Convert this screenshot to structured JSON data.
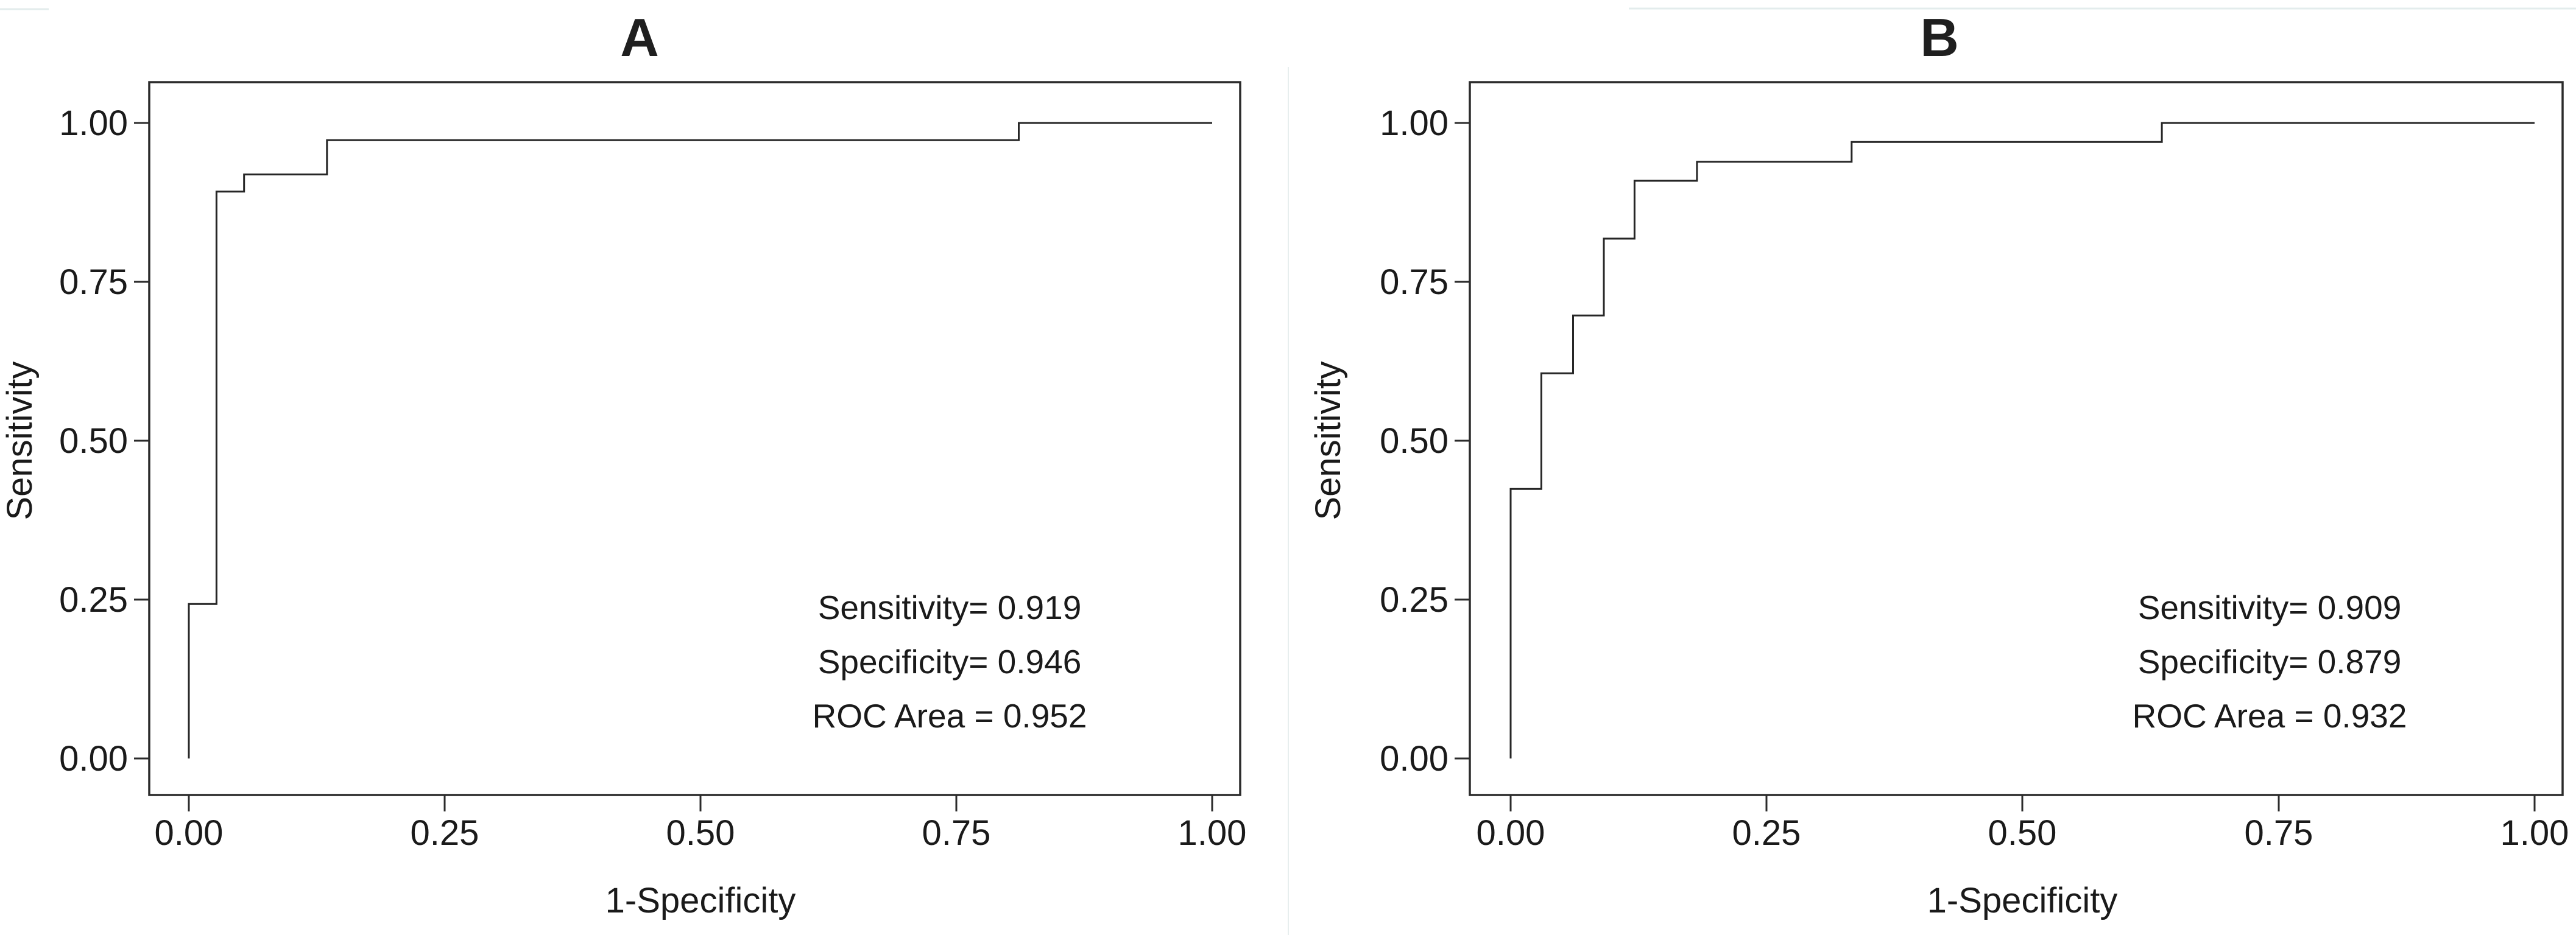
{
  "figure": {
    "background": "#ffffff",
    "line_color": "#262626",
    "text_color": "#1a1a1a",
    "panels": [
      {
        "title": "A",
        "xlabel": "1-Specificity",
        "ylabel": "Sensitivity",
        "x_tick_labels": [
          "0.00",
          "0.25",
          "0.50",
          "0.75",
          "1.00"
        ],
        "y_tick_labels": [
          "1.00",
          "0.75",
          "0.50",
          "0.25",
          "0.00"
        ],
        "annotation_lines": [
          "Sensitivity= 0.919",
          "Specificity= 0.946",
          "ROC Area = 0.952"
        ]
      },
      {
        "title": "B",
        "xlabel": "1-Specificity",
        "ylabel": "Sensitivity",
        "x_tick_labels": [
          "0.00",
          "0.25",
          "0.50",
          "0.75",
          "1.00"
        ],
        "y_tick_labels": [
          "1.00",
          "0.75",
          "0.50",
          "0.25",
          "0.00"
        ],
        "annotation_lines": [
          "Sensitivity= 0.909",
          "Specificity= 0.879",
          "ROC Area = 0.932"
        ]
      }
    ]
  },
  "chart_data": [
    {
      "type": "line",
      "variant": "roc-step-curve",
      "title": "A",
      "xlabel": "1-Specificity",
      "ylabel": "Sensitivity",
      "xlim": [
        0,
        1
      ],
      "ylim": [
        0,
        1
      ],
      "x_ticks": [
        0.0,
        0.25,
        0.5,
        0.75,
        1.0
      ],
      "y_ticks": [
        0.0,
        0.25,
        0.5,
        0.75,
        1.0
      ],
      "grid": false,
      "legend": false,
      "series": [
        {
          "name": "ROC curve A",
          "points": [
            [
              0.0,
              0.0
            ],
            [
              0.0,
              0.243
            ],
            [
              0.027,
              0.243
            ],
            [
              0.027,
              0.892
            ],
            [
              0.054,
              0.892
            ],
            [
              0.054,
              0.919
            ],
            [
              0.135,
              0.919
            ],
            [
              0.135,
              0.973
            ],
            [
              0.811,
              0.973
            ],
            [
              0.811,
              1.0
            ],
            [
              1.0,
              1.0
            ]
          ]
        }
      ],
      "annotations": {
        "sensitivity": 0.919,
        "specificity": 0.946,
        "roc_area": 0.952
      }
    },
    {
      "type": "line",
      "variant": "roc-step-curve",
      "title": "B",
      "xlabel": "1-Specificity",
      "ylabel": "Sensitivity",
      "xlim": [
        0,
        1
      ],
      "ylim": [
        0,
        1
      ],
      "x_ticks": [
        0.0,
        0.25,
        0.5,
        0.75,
        1.0
      ],
      "y_ticks": [
        0.0,
        0.25,
        0.5,
        0.75,
        1.0
      ],
      "grid": false,
      "legend": false,
      "series": [
        {
          "name": "ROC curve B",
          "points": [
            [
              0.0,
              0.0
            ],
            [
              0.0,
              0.424
            ],
            [
              0.03,
              0.424
            ],
            [
              0.03,
              0.606
            ],
            [
              0.061,
              0.606
            ],
            [
              0.061,
              0.697
            ],
            [
              0.091,
              0.697
            ],
            [
              0.091,
              0.818
            ],
            [
              0.121,
              0.818
            ],
            [
              0.121,
              0.909
            ],
            [
              0.182,
              0.909
            ],
            [
              0.182,
              0.939
            ],
            [
              0.333,
              0.939
            ],
            [
              0.333,
              0.97
            ],
            [
              0.636,
              0.97
            ],
            [
              0.636,
              1.0
            ],
            [
              1.0,
              1.0
            ]
          ]
        }
      ],
      "annotations": {
        "sensitivity": 0.909,
        "specificity": 0.879,
        "roc_area": 0.932
      }
    }
  ]
}
